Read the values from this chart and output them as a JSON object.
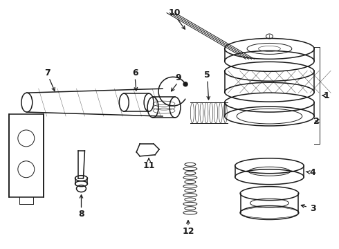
{
  "bg_color": "#ffffff",
  "line_color": "#1a1a1a",
  "lw_main": 1.1,
  "lw_thin": 0.7,
  "lw_xtra": 0.4,
  "parts": [
    "1",
    "2",
    "3",
    "4",
    "5",
    "6",
    "7",
    "8",
    "9",
    "10",
    "11",
    "12"
  ]
}
